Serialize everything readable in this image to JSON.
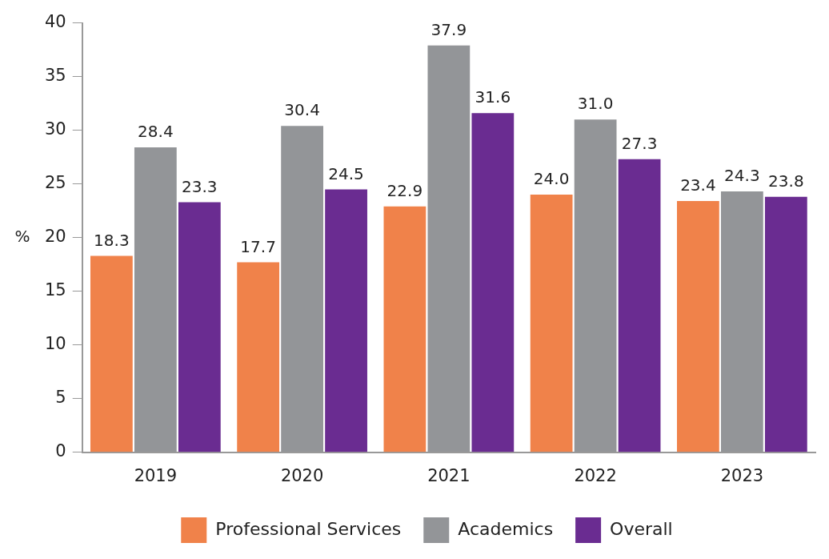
{
  "chart_data": {
    "type": "bar",
    "ylabel": "%",
    "categories": [
      "2019",
      "2020",
      "2021",
      "2022",
      "2023"
    ],
    "series": [
      {
        "name": "Professional Services",
        "color": "#f0824a",
        "values": [
          18.3,
          17.7,
          22.9,
          24.0,
          23.4
        ],
        "value_labels": [
          "18.3",
          "17.7",
          "22.9",
          "24.0",
          "23.4"
        ]
      },
      {
        "name": "Academics",
        "color": "#939598",
        "values": [
          28.4,
          30.4,
          37.9,
          31.0,
          24.3
        ],
        "value_labels": [
          "28.4",
          "30.4",
          "37.9",
          "31.0",
          "24.3"
        ]
      },
      {
        "name": "Overall",
        "color": "#6a2c91",
        "values": [
          23.3,
          24.5,
          31.6,
          27.3,
          23.8
        ],
        "value_labels": [
          "23.3",
          "24.5",
          "31.6",
          "27.3",
          "23.8"
        ]
      }
    ],
    "ylim": [
      0,
      40
    ],
    "yticks": [
      0,
      5,
      10,
      15,
      20,
      25,
      30,
      35,
      40
    ],
    "grid": false,
    "legend": "bottom"
  }
}
